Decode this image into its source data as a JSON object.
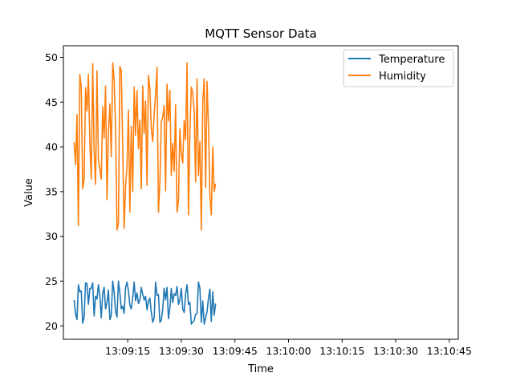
{
  "chart_data": {
    "type": "line",
    "title": "MQTT Sensor Data",
    "xlabel": "Time",
    "ylabel": "Value",
    "x_start": "13:09:04",
    "x_step_seconds": 0.4,
    "x_tick_labels": [
      "13:09:15",
      "13:09:30",
      "13:09:45",
      "13:10:00",
      "13:10:15",
      "13:10:30",
      "13:10:45"
    ],
    "x_tick_values_seconds": [
      15,
      30,
      45,
      60,
      75,
      90,
      105
    ],
    "x_range_seconds": [
      -3.0,
      107.5
    ],
    "ylim": [
      18.5,
      51.3
    ],
    "y_ticks": [
      20,
      25,
      30,
      35,
      40,
      45,
      50
    ],
    "legend_position": "upper right",
    "series": [
      {
        "name": "Temperature",
        "color": "#1f77b4",
        "values": [
          22.9,
          21.3,
          20.7,
          24.6,
          23.8,
          23.9,
          20.3,
          21.0,
          24.8,
          24.7,
          22.4,
          24.2,
          24.2,
          24.8,
          21.1,
          23.3,
          23.0,
          24.6,
          23.3,
          20.9,
          23.6,
          24.3,
          21.9,
          22.6,
          24.0,
          20.7,
          21.2,
          25.0,
          23.8,
          21.6,
          21.0,
          25.0,
          23.7,
          21.9,
          22.2,
          21.4,
          24.3,
          24.9,
          23.9,
          22.3,
          21.9,
          23.2,
          24.9,
          22.8,
          23.7,
          22.5,
          22.9,
          24.3,
          23.5,
          22.9,
          23.3,
          21.8,
          22.8,
          23.1,
          21.5,
          20.4,
          20.9,
          24.9,
          23.4,
          23.5,
          20.4,
          20.6,
          21.9,
          24.2,
          22.9,
          24.3,
          20.8,
          22.0,
          24.2,
          22.6,
          23.6,
          23.4,
          24.4,
          22.4,
          22.9,
          24.2,
          21.9,
          21.5,
          23.6,
          24.6,
          22.4,
          22.6,
          20.2,
          20.4,
          20.6,
          21.3,
          21.4,
          24.9,
          24.2,
          20.4,
          22.8,
          20.2,
          20.9,
          21.6,
          23.1,
          24.1,
          20.5,
          23.8,
          21.2,
          22.5
        ],
        "line_style": "solid"
      },
      {
        "name": "Humidity",
        "color": "#ff7f0e",
        "values": [
          40.5,
          38.0,
          43.6,
          31.2,
          48.1,
          46.7,
          35.3,
          36.4,
          46.6,
          44.0,
          48.1,
          40.5,
          36.4,
          49.3,
          39.7,
          35.8,
          48.5,
          38.5,
          37.5,
          36.4,
          44.5,
          41.0,
          46.8,
          34.1,
          41.6,
          44.8,
          38.9,
          49.4,
          47.5,
          42.0,
          30.7,
          31.4,
          49.0,
          48.5,
          40.0,
          30.9,
          35.6,
          37.8,
          44.1,
          32.7,
          42.3,
          35.0,
          46.7,
          41.3,
          46.3,
          39.8,
          43.0,
          35.3,
          46.8,
          41.5,
          45.1,
          35.7,
          48.0,
          46.5,
          42.0,
          40.6,
          43.6,
          45.9,
          48.9,
          32.7,
          36.0,
          42.8,
          43.3,
          44.6,
          35.1,
          47.0,
          42.9,
          46.3,
          36.8,
          40.4,
          37.3,
          44.7,
          32.7,
          34.0,
          42.0,
          39.2,
          38.2,
          42.9,
          40.8,
          49.4,
          32.4,
          41.6,
          46.7,
          46.1,
          44.0,
          36.1,
          47.6,
          36.8,
          40.6,
          30.7,
          45.0,
          47.6,
          35.5,
          47.3,
          42.3,
          34.5,
          32.4,
          40.0,
          35.0,
          35.9
        ],
        "line_style": "solid"
      }
    ]
  }
}
